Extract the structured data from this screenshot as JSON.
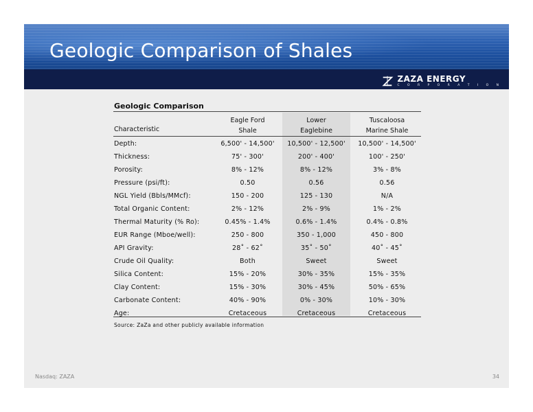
{
  "slide": {
    "title": "Geologic Comparison of Shales",
    "logo": {
      "name": "ZAZA ENERGY",
      "sub": "C O R P O R A T I O N"
    },
    "footer_left": "Nasdaq: ZAZA",
    "page_number": "34"
  },
  "table": {
    "title": "Geologic Comparison",
    "header": {
      "characteristic": "Characteristic",
      "col1": [
        "Eagle Ford",
        "Shale"
      ],
      "col2": [
        "Lower",
        "Eaglebine"
      ],
      "col3": [
        "Tuscaloosa",
        "Marine Shale"
      ]
    },
    "rows": [
      [
        "Depth:",
        "6,500' - 14,500'",
        "10,500' - 12,500'",
        "10,500' - 14,500'"
      ],
      [
        "Thickness:",
        "75' - 300'",
        "200' - 400'",
        "100' - 250'"
      ],
      [
        "Porosity:",
        "8% - 12%",
        "8% - 12%",
        "3% - 8%"
      ],
      [
        "Pressure (psi/ft):",
        "0.50",
        "0.56",
        "0.56"
      ],
      [
        "NGL Yield (Bbls/MMcf):",
        "150 - 200",
        "125 - 130",
        "N/A"
      ],
      [
        "Total Organic Content:",
        "2% - 12%",
        "2% - 9%",
        "1% - 2%"
      ],
      [
        "Thermal Maturity (% Ro):",
        "0.45% - 1.4%",
        "0.6% - 1.4%",
        "0.4% - 0.8%"
      ],
      [
        "EUR Range (Mboe/well):",
        "250 - 800",
        "350 - 1,000",
        "450 - 800"
      ],
      [
        "API Gravity:",
        "28˚ - 62˚",
        "35˚ - 50˚",
        "40˚ - 45˚"
      ],
      [
        "Crude Oil Quality:",
        "Both",
        "Sweet",
        "Sweet"
      ],
      [
        "Silica Content:",
        "15% - 20%",
        "30% - 35%",
        "15% - 35%"
      ],
      [
        "Clay Content:",
        "15% - 30%",
        "30% - 45%",
        "50% - 65%"
      ],
      [
        "Carbonate Content:",
        "40% - 90%",
        "0% - 30%",
        "10% - 30%"
      ],
      [
        "Age:",
        "Cretaceous",
        "Cretaceous",
        "Cretaceous"
      ]
    ],
    "source": "Source: ZaZa and other publicly available information"
  }
}
